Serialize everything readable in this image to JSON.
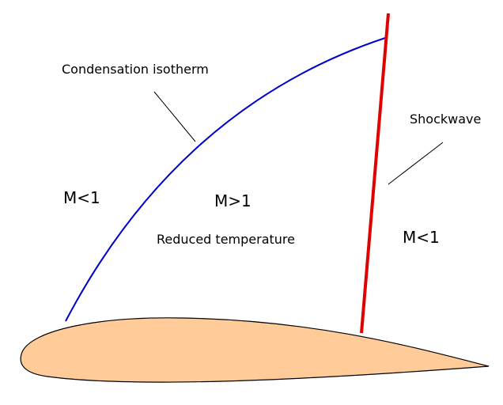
{
  "labels": {
    "condensation_isotherm": "Condensation isotherm",
    "shockwave": "Shockwave",
    "mach_subsonic_left": "M<1",
    "mach_supersonic": "M>1",
    "reduced_temperature": "Reduced temperature",
    "mach_subsonic_right": "M<1"
  },
  "colors": {
    "isotherm": "#0000cc",
    "shockwave": "#e00000",
    "airfoil_fill": "#ffcc99",
    "airfoil_stroke": "#000000",
    "leader_line": "#000000",
    "background": "#ffffff"
  }
}
